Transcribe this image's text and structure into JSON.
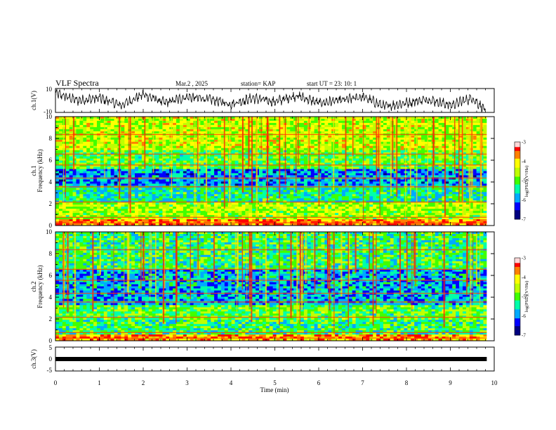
{
  "header": {
    "title": "VLF Spectra",
    "date": "Mar.2 , 2025",
    "station": "station= KAP",
    "start": "start UT = 23: 10: 1"
  },
  "colors": {
    "trace": "#000000",
    "colormap": [
      "#000080",
      "#0000ff",
      "#00aaff",
      "#00ffaa",
      "#40ff00",
      "#c0ff00",
      "#ffff00",
      "#ff8000",
      "#ff0000",
      "#ffffff"
    ]
  },
  "chart_data": [
    {
      "type": "line",
      "panel": "ch1-waveform",
      "ylabel": "ch.1(V)",
      "ylim": [
        -10,
        10
      ],
      "yticklabels": [
        "10",
        "-10"
      ],
      "x_range_min": [
        0,
        9.83
      ],
      "note_values_approx": "noisy trace oscillating mostly between -10 and 10 V",
      "x": [
        0,
        0.5,
        1,
        1.5,
        2,
        2.5,
        3,
        3.5,
        4,
        4.5,
        5,
        5.5,
        6,
        6.5,
        7,
        7.5,
        8,
        8.5,
        9,
        9.5,
        9.8
      ],
      "y": [
        6,
        0,
        2,
        -4,
        5,
        -2,
        3,
        1,
        -3,
        2,
        -1,
        4,
        -2,
        0,
        3,
        -5,
        -2,
        1,
        -4,
        2,
        -8
      ]
    },
    {
      "type": "heatmap",
      "panel": "ch1-spectrogram",
      "ylabel_top": "ch.1",
      "ylabel": "Frequency (kHz)",
      "ylim": [
        0,
        10
      ],
      "yticks": [
        0,
        2,
        4,
        6,
        8,
        10
      ],
      "colorbar": {
        "label": "log(PSD)(V²/Hz)",
        "range": [
          -7,
          -3
        ],
        "ticks": [
          "-3",
          "-4",
          "-5",
          "-6",
          "-7"
        ]
      },
      "dominant_level_by_band": [
        {
          "band_khz": [
            0,
            0.5
          ],
          "level": -3.6
        },
        {
          "band_khz": [
            0.5,
            2.2
          ],
          "level": -4.6
        },
        {
          "band_khz": [
            2.2,
            3.6
          ],
          "level": -5.4
        },
        {
          "band_khz": [
            3.6,
            5.2
          ],
          "level": -5.9
        },
        {
          "band_khz": [
            5.2,
            7.0
          ],
          "level": -5.0
        },
        {
          "band_khz": [
            7.0,
            10
          ],
          "level": -4.5
        }
      ]
    },
    {
      "type": "heatmap",
      "panel": "ch2-spectrogram",
      "ylabel_top": "ch.2",
      "ylabel": "Frequency (kHz)",
      "ylim": [
        0,
        10
      ],
      "yticks": [
        0,
        2,
        4,
        6,
        8,
        10
      ],
      "colorbar": {
        "label": "log(PSD)(V²/Hz)",
        "range": [
          -7,
          -3
        ],
        "ticks": [
          "-3",
          "-4",
          "-5",
          "-6",
          "-7"
        ]
      },
      "dominant_level_by_band": [
        {
          "band_khz": [
            0,
            0.5
          ],
          "level": -3.8
        },
        {
          "band_khz": [
            0.5,
            2.0
          ],
          "level": -5.2
        },
        {
          "band_khz": [
            2.0,
            3.3
          ],
          "level": -5.0
        },
        {
          "band_khz": [
            3.3,
            6.5
          ],
          "level": -5.8
        },
        {
          "band_khz": [
            6.5,
            10
          ],
          "level": -5.2
        }
      ]
    },
    {
      "type": "line",
      "panel": "ch3-waveform",
      "ylabel": "ch.3(V)",
      "ylim": [
        -5,
        5
      ],
      "yticklabels": [
        "5",
        "0",
        "-5"
      ],
      "x": [
        0,
        9.83
      ],
      "y": [
        0,
        0
      ],
      "xlabel": "Time (min)",
      "xlim": [
        0,
        10
      ],
      "xticks": [
        "0",
        "1",
        "2",
        "3",
        "4",
        "5",
        "6",
        "7",
        "8",
        "9",
        "10"
      ]
    }
  ]
}
